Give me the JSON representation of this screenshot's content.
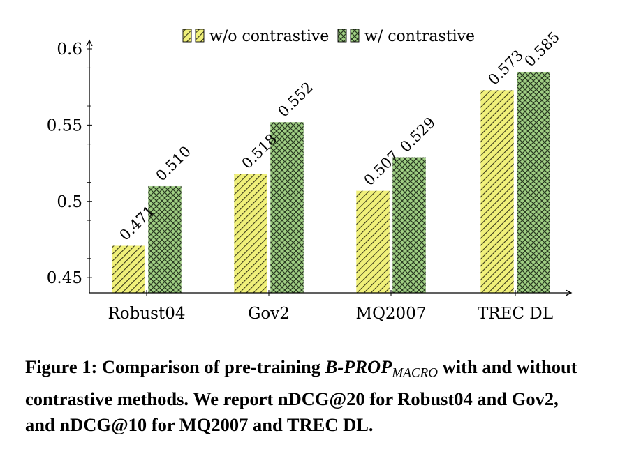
{
  "chart_data": {
    "type": "bar",
    "categories": [
      "Robust04",
      "Gov2",
      "MQ2007",
      "TREC DL"
    ],
    "series": [
      {
        "name": "w/o contrastive",
        "values": [
          0.471,
          0.518,
          0.507,
          0.573
        ],
        "labels": [
          "0.471",
          "0.518",
          "0.507",
          "0.573"
        ],
        "color": "#f0f07a",
        "pattern": "diagonal-lines"
      },
      {
        "name": "w/ contrastive",
        "values": [
          0.51,
          0.552,
          0.529,
          0.585
        ],
        "labels": [
          "0.510",
          "0.552",
          "0.529",
          "0.585"
        ],
        "color": "#9fce83",
        "pattern": "crosshatch"
      }
    ],
    "y_ticks": [
      "0.45",
      "0.5",
      "0.55",
      "0.6"
    ],
    "y_tick_values": [
      0.45,
      0.5,
      0.55,
      0.6
    ],
    "ylim": [
      0.44,
      0.6
    ],
    "grid": "horizontal",
    "legend_position": "top-center",
    "xlabel": "",
    "ylabel": "",
    "title": ""
  },
  "caption": {
    "prefix": "Figure 1: Comparison of pre-training ",
    "model": "B-PROP",
    "model_sub": "MACRO",
    "suffix": " with and without contrastive methods. We report nDCG@20 for Robust04 and Gov2, and nDCG@10 for MQ2007 and TREC DL."
  }
}
